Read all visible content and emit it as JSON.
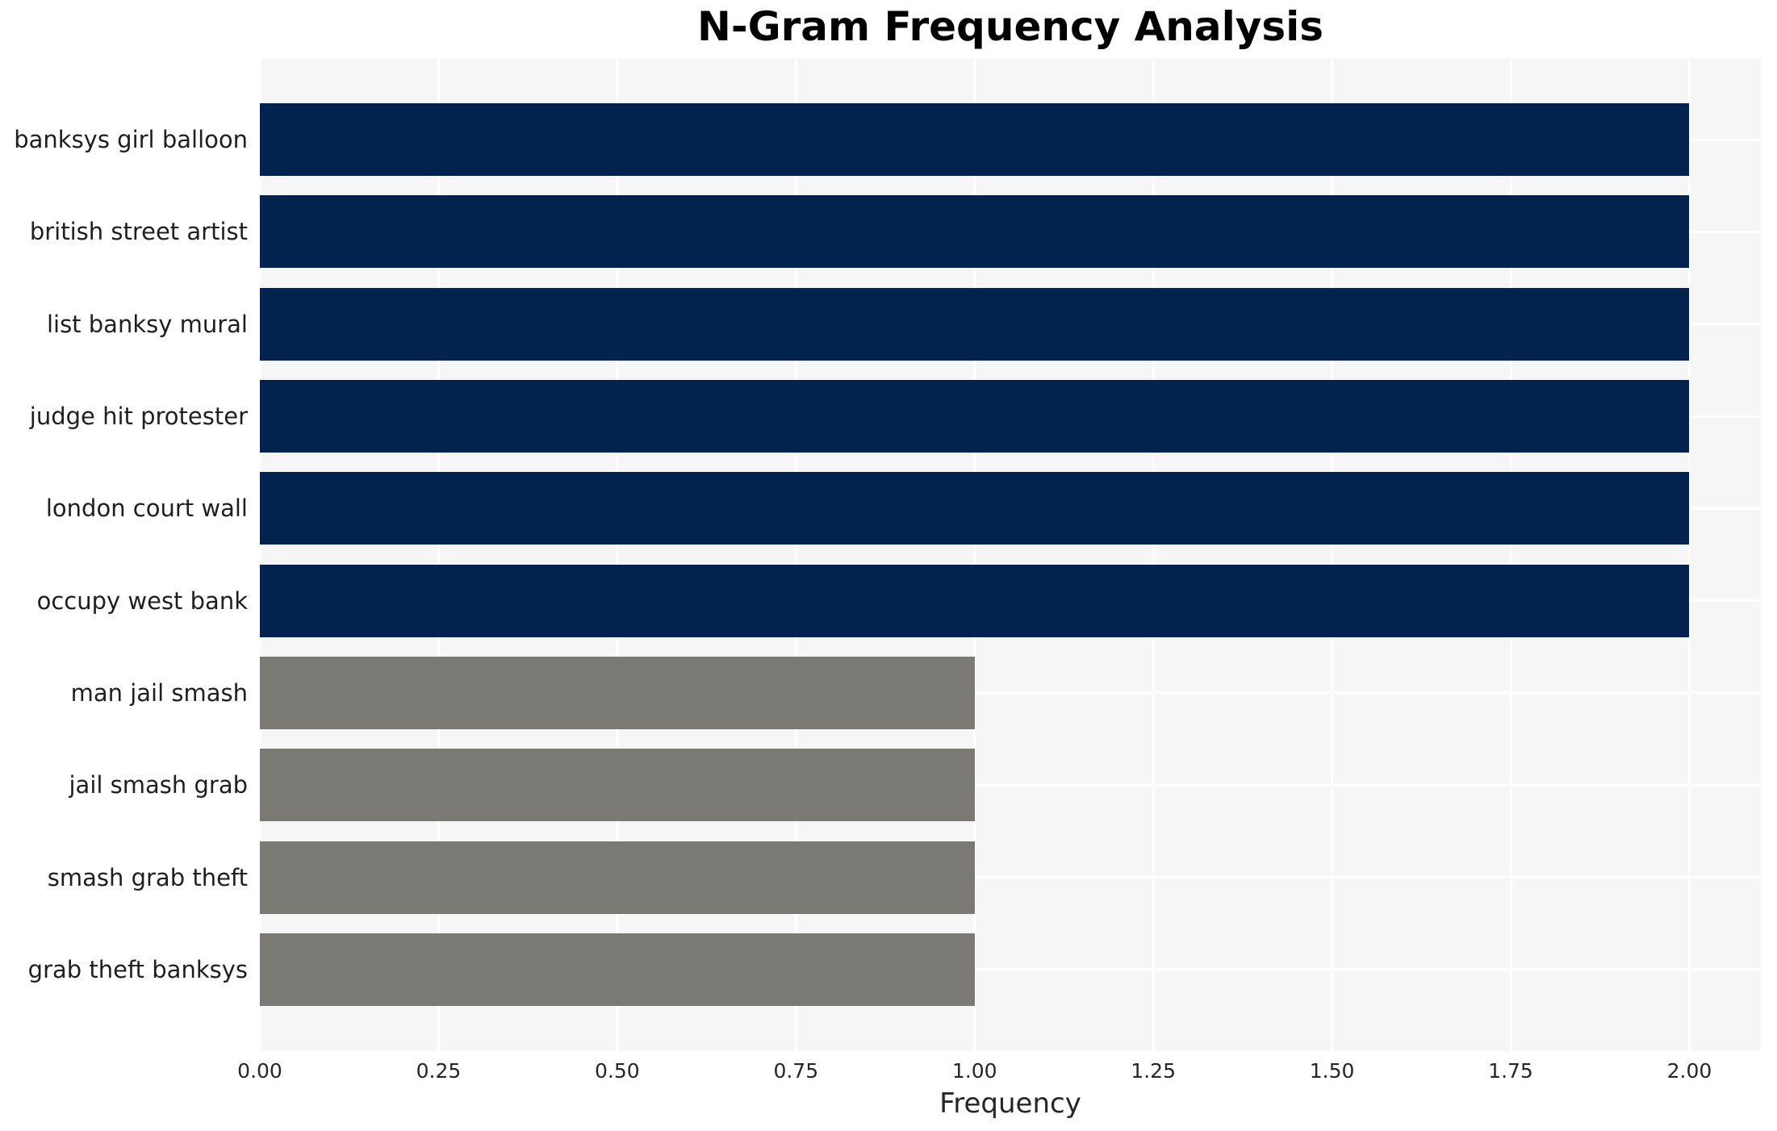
{
  "chart_data": {
    "type": "bar",
    "orientation": "horizontal",
    "title": "N-Gram Frequency Analysis",
    "xlabel": "Frequency",
    "ylabel": "",
    "categories": [
      "banksys girl balloon",
      "british street artist",
      "list banksy mural",
      "judge hit protester",
      "london court wall",
      "occupy west bank",
      "man jail smash",
      "jail smash grab",
      "smash grab theft",
      "grab theft banksys"
    ],
    "values": [
      2,
      2,
      2,
      2,
      2,
      2,
      1,
      1,
      1,
      1
    ],
    "bar_colors": [
      "#02234e",
      "#02234e",
      "#02234e",
      "#02234e",
      "#02234e",
      "#02234e",
      "#7b7974",
      "#7b7974",
      "#7b7974",
      "#7b7974"
    ],
    "xlim": [
      0,
      2.1
    ],
    "xticks": [
      "0.00",
      "0.25",
      "0.50",
      "0.75",
      "1.00",
      "1.25",
      "1.50",
      "1.75",
      "2.00"
    ],
    "xtick_values": [
      0,
      0.25,
      0.5,
      0.75,
      1.0,
      1.25,
      1.5,
      1.75,
      2.0
    ],
    "grid": true,
    "legend": false,
    "colors": {
      "high_frequency_bar": "#02234e",
      "low_frequency_bar": "#7b7974",
      "plot_background": "#f6f6f7",
      "gridline": "#ffffff",
      "tick_text": "#262626",
      "title_text": "#000000"
    }
  }
}
